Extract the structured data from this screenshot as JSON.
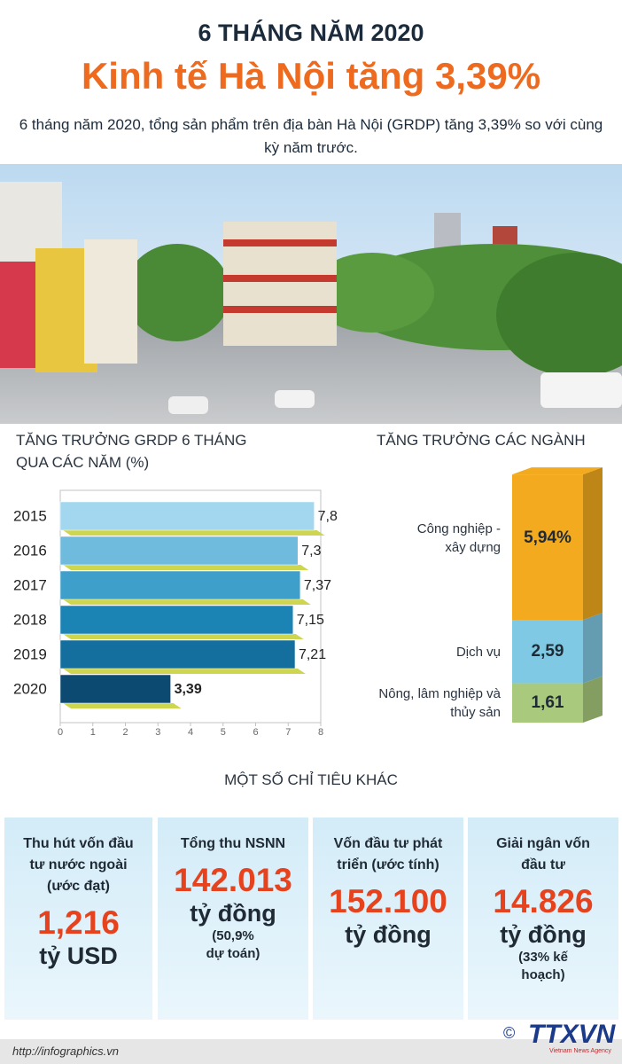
{
  "header": {
    "kicker": "6 THÁNG NĂM 2020",
    "title": "Kinh tế Hà Nội tăng 3,39%",
    "summary": "6 tháng năm 2020, tổng sản phẩm trên địa bàn Hà Nội (GRDP) tăng 3,39% so với cùng kỳ năm trước."
  },
  "chart_data": [
    {
      "type": "barh",
      "title": "TĂNG TRƯỞNG  GRDP 6 THÁNG QUA CÁC NĂM (%)",
      "categories": [
        "2015",
        "2016",
        "2017",
        "2018",
        "2019",
        "2020"
      ],
      "values": [
        7.8,
        7.3,
        7.37,
        7.15,
        7.21,
        3.39
      ],
      "value_labels": [
        "7,8",
        "7,3",
        "7,37",
        "7,15",
        "7,21",
        "3,39"
      ],
      "colors": [
        "#a3d7ef",
        "#6fbbde",
        "#3e9fca",
        "#1c83b5",
        "#146f9f",
        "#0d4a72"
      ],
      "xlim": [
        0,
        8
      ],
      "xticks": [
        0,
        1,
        2,
        3,
        4,
        5,
        6,
        7,
        8
      ]
    },
    {
      "type": "stacked-column",
      "title": "TĂNG TRƯỞNG CÁC NGÀNH",
      "categories": [
        "Nông, lâm nghiệp và thủy sản",
        "Dịch vụ",
        "Công nghiệp - xây dựng"
      ],
      "values": [
        1.61,
        2.59,
        5.94
      ],
      "value_labels": [
        "1,61",
        "2,59",
        "5,94%"
      ],
      "colors": [
        "#a9c97c",
        "#80c9e4",
        "#f3aa1e"
      ]
    }
  ],
  "indicators": {
    "title": "MỘT SỐ CHỈ TIÊU KHÁC",
    "items": [
      {
        "label": "Thu hút vốn đầu tư nước ngoài (ước đạt)",
        "value": "1,216",
        "unit": "tỷ USD"
      },
      {
        "label": "Tổng thu NSNN",
        "value": "142.013",
        "unit": "tỷ đồng",
        "note": "(50,9% dự toán)"
      },
      {
        "label": "Vốn đầu tư phát triển (ước tính)",
        "value": "152.100",
        "unit": "tỷ đồng"
      },
      {
        "label": "Giải ngân vốn đầu tư",
        "value": "14.826",
        "unit": "tỷ đồng",
        "note": "(33% kế hoạch)"
      }
    ]
  },
  "footer": {
    "url": "http://infographics.vn",
    "copyright": "©",
    "brand": "TTXVN",
    "brand_sub": "Vietnam News Agency"
  }
}
